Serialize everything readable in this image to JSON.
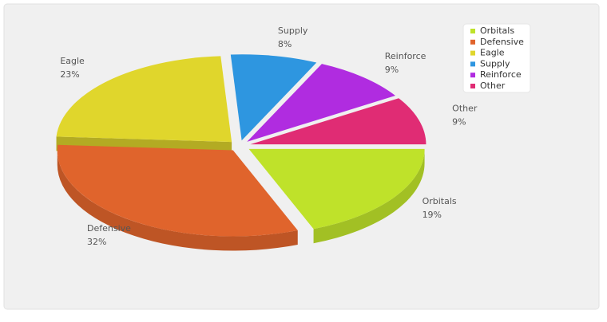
{
  "chart_data": {
    "type": "pie",
    "categories": [
      "Orbitals",
      "Defensive",
      "Eagle",
      "Supply",
      "Reinforce",
      "Other"
    ],
    "values": [
      19,
      32,
      23,
      8,
      9,
      9
    ],
    "value_labels": [
      "19%",
      "32%",
      "23%",
      "8%",
      "9%",
      "9%"
    ],
    "colors": [
      "#bfe22a",
      "#e0642c",
      "#e0d62c",
      "#2e96e0",
      "#b02ce0",
      "#e02c74"
    ],
    "legend": "top-right"
  }
}
